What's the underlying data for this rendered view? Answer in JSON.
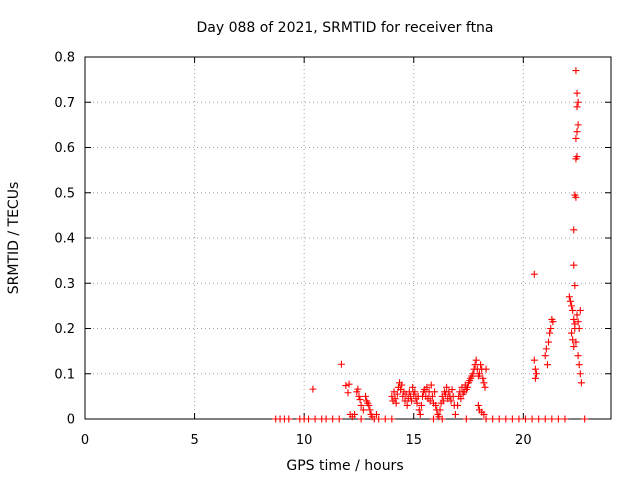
{
  "chart_data": {
    "type": "scatter",
    "title": "Day 088 of 2021, SRMTID for receiver ftna",
    "xlabel": "GPS time / hours",
    "ylabel": "SRMTID / TECUs",
    "xlim": [
      0,
      24
    ],
    "ylim": [
      0,
      0.8
    ],
    "xticks": [
      0,
      5,
      10,
      15,
      20
    ],
    "xtick_labels": [
      "0",
      "5",
      "10",
      "15",
      "20"
    ],
    "yticks": [
      0,
      0.1,
      0.2,
      0.3,
      0.4,
      0.5,
      0.6,
      0.7,
      0.8
    ],
    "ytick_labels": [
      "0",
      "0.1",
      "0.2",
      "0.3",
      "0.4",
      "0.5",
      "0.6",
      "0.7",
      "0.8"
    ],
    "grid": true,
    "marker": "+",
    "marker_color": "#ff0000",
    "series": [
      {
        "name": "SRMTID",
        "points": [
          [
            8.7,
            0
          ],
          [
            8.9,
            0
          ],
          [
            9.1,
            0
          ],
          [
            9.3,
            0
          ],
          [
            9.8,
            0
          ],
          [
            10.0,
            0
          ],
          [
            10.2,
            0
          ],
          [
            10.5,
            0
          ],
          [
            10.8,
            0
          ],
          [
            11.0,
            0
          ],
          [
            11.3,
            0
          ],
          [
            11.6,
            0
          ],
          [
            12.6,
            0
          ],
          [
            13.2,
            0
          ],
          [
            13.4,
            0
          ],
          [
            13.7,
            0
          ],
          [
            14.0,
            0
          ],
          [
            15.9,
            0
          ],
          [
            16.3,
            0
          ],
          [
            17.4,
            0
          ],
          [
            18.3,
            0
          ],
          [
            18.6,
            0
          ],
          [
            18.9,
            0
          ],
          [
            19.2,
            0
          ],
          [
            19.5,
            0
          ],
          [
            19.8,
            0
          ],
          [
            20.1,
            0
          ],
          [
            20.4,
            0
          ],
          [
            20.7,
            0
          ],
          [
            21.0,
            0
          ],
          [
            21.3,
            0
          ],
          [
            21.6,
            0
          ],
          [
            21.9,
            0
          ],
          [
            22.8,
            0
          ],
          [
            10.4,
            0.066
          ],
          [
            11.7,
            0.121
          ],
          [
            11.9,
            0.074
          ],
          [
            12.0,
            0.058
          ],
          [
            12.05,
            0.077
          ],
          [
            12.1,
            0.01
          ],
          [
            12.2,
            0.005
          ],
          [
            12.3,
            0.01
          ],
          [
            12.4,
            0.06
          ],
          [
            12.45,
            0.066
          ],
          [
            12.5,
            0.05
          ],
          [
            12.55,
            0.043
          ],
          [
            12.6,
            0.03
          ],
          [
            12.7,
            0.02
          ],
          [
            12.8,
            0.05
          ],
          [
            12.85,
            0.04
          ],
          [
            12.9,
            0.035
          ],
          [
            12.95,
            0.03
          ],
          [
            13.0,
            0.02
          ],
          [
            13.05,
            0.01
          ],
          [
            13.1,
            0.005
          ],
          [
            13.3,
            0.01
          ],
          [
            14.0,
            0.05
          ],
          [
            14.05,
            0.04
          ],
          [
            14.1,
            0.06
          ],
          [
            14.15,
            0.045
          ],
          [
            14.2,
            0.035
          ],
          [
            14.25,
            0.055
          ],
          [
            14.3,
            0.07
          ],
          [
            14.35,
            0.08
          ],
          [
            14.4,
            0.065
          ],
          [
            14.45,
            0.075
          ],
          [
            14.5,
            0.05
          ],
          [
            14.55,
            0.06
          ],
          [
            14.6,
            0.04
          ],
          [
            14.65,
            0.055
          ],
          [
            14.7,
            0.03
          ],
          [
            14.75,
            0.045
          ],
          [
            14.8,
            0.06
          ],
          [
            14.85,
            0.05
          ],
          [
            14.9,
            0.04
          ],
          [
            14.95,
            0.07
          ],
          [
            15.0,
            0.055
          ],
          [
            15.05,
            0.06
          ],
          [
            15.1,
            0.045
          ],
          [
            15.15,
            0.035
          ],
          [
            15.2,
            0.05
          ],
          [
            15.25,
            0.02
          ],
          [
            15.3,
            0.01
          ],
          [
            15.35,
            0.03
          ],
          [
            15.4,
            0.05
          ],
          [
            15.45,
            0.06
          ],
          [
            15.5,
            0.065
          ],
          [
            15.55,
            0.05
          ],
          [
            15.6,
            0.07
          ],
          [
            15.65,
            0.045
          ],
          [
            15.7,
            0.06
          ],
          [
            15.75,
            0.04
          ],
          [
            15.8,
            0.075
          ],
          [
            15.85,
            0.05
          ],
          [
            15.9,
            0.035
          ],
          [
            15.95,
            0.06
          ],
          [
            16.0,
            0.03
          ],
          [
            16.05,
            0.02
          ],
          [
            16.1,
            0.01
          ],
          [
            16.15,
            0.005
          ],
          [
            16.2,
            0.02
          ],
          [
            16.25,
            0.035
          ],
          [
            16.3,
            0.05
          ],
          [
            16.35,
            0.04
          ],
          [
            16.4,
            0.06
          ],
          [
            16.45,
            0.055
          ],
          [
            16.5,
            0.07
          ],
          [
            16.55,
            0.045
          ],
          [
            16.6,
            0.06
          ],
          [
            16.65,
            0.05
          ],
          [
            16.7,
            0.04
          ],
          [
            16.75,
            0.065
          ],
          [
            16.8,
            0.05
          ],
          [
            16.85,
            0.03
          ],
          [
            16.9,
            0.01
          ],
          [
            17.0,
            0.03
          ],
          [
            17.05,
            0.05
          ],
          [
            17.1,
            0.06
          ],
          [
            17.15,
            0.045
          ],
          [
            17.2,
            0.07
          ],
          [
            17.25,
            0.055
          ],
          [
            17.3,
            0.06
          ],
          [
            17.35,
            0.075
          ],
          [
            17.4,
            0.065
          ],
          [
            17.45,
            0.07
          ],
          [
            17.5,
            0.08
          ],
          [
            17.55,
            0.085
          ],
          [
            17.6,
            0.09
          ],
          [
            17.65,
            0.095
          ],
          [
            17.7,
            0.1
          ],
          [
            17.75,
            0.11
          ],
          [
            17.8,
            0.12
          ],
          [
            17.85,
            0.13
          ],
          [
            17.9,
            0.11
          ],
          [
            17.95,
            0.095
          ],
          [
            18.0,
            0.1
          ],
          [
            18.05,
            0.12
          ],
          [
            18.1,
            0.11
          ],
          [
            18.15,
            0.09
          ],
          [
            18.2,
            0.08
          ],
          [
            18.25,
            0.07
          ],
          [
            18.3,
            0.11
          ],
          [
            17.95,
            0.03
          ],
          [
            18.0,
            0.02
          ],
          [
            18.1,
            0.015
          ],
          [
            18.2,
            0.01
          ],
          [
            20.5,
            0.32
          ],
          [
            20.5,
            0.13
          ],
          [
            20.55,
            0.11
          ],
          [
            20.6,
            0.1
          ],
          [
            20.55,
            0.09
          ],
          [
            21.0,
            0.14
          ],
          [
            21.05,
            0.155
          ],
          [
            21.1,
            0.12
          ],
          [
            21.15,
            0.17
          ],
          [
            21.2,
            0.19
          ],
          [
            21.25,
            0.2
          ],
          [
            21.3,
            0.22
          ],
          [
            21.35,
            0.215
          ],
          [
            22.1,
            0.27
          ],
          [
            22.15,
            0.26
          ],
          [
            22.2,
            0.25
          ],
          [
            22.25,
            0.24
          ],
          [
            22.3,
            0.22
          ],
          [
            22.35,
            0.21
          ],
          [
            22.2,
            0.19
          ],
          [
            22.25,
            0.175
          ],
          [
            22.3,
            0.16
          ],
          [
            22.35,
            0.2
          ],
          [
            22.4,
            0.17
          ],
          [
            22.45,
            0.23
          ],
          [
            22.5,
            0.14
          ],
          [
            22.55,
            0.12
          ],
          [
            22.6,
            0.1
          ],
          [
            22.65,
            0.08
          ],
          [
            22.5,
            0.215
          ],
          [
            22.55,
            0.2
          ],
          [
            22.6,
            0.24
          ],
          [
            22.3,
            0.34
          ],
          [
            22.35,
            0.295
          ],
          [
            22.3,
            0.418
          ],
          [
            22.35,
            0.495
          ],
          [
            22.4,
            0.49
          ],
          [
            22.4,
            0.575
          ],
          [
            22.45,
            0.58
          ],
          [
            22.4,
            0.62
          ],
          [
            22.45,
            0.635
          ],
          [
            22.5,
            0.65
          ],
          [
            22.45,
            0.69
          ],
          [
            22.5,
            0.7
          ],
          [
            22.45,
            0.72
          ],
          [
            22.4,
            0.77
          ]
        ]
      }
    ]
  }
}
